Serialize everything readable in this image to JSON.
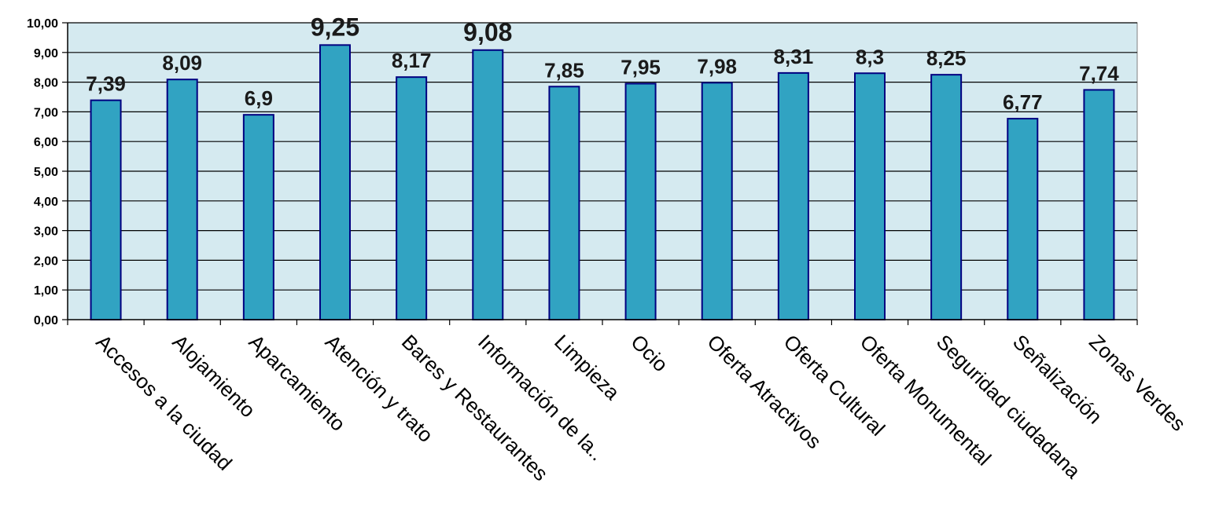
{
  "chart_data": {
    "type": "bar",
    "title": "",
    "xlabel": "",
    "ylabel": "",
    "ylim": [
      0,
      10
    ],
    "y_ticks": [
      "0,00",
      "1,00",
      "2,00",
      "3,00",
      "4,00",
      "5,00",
      "6,00",
      "7,00",
      "8,00",
      "9,00",
      "10,00"
    ],
    "grid": true,
    "legend": "none",
    "colors": {
      "plot_background": "#d5eaf0",
      "bar_fill": "#31a3c2",
      "bar_stroke": "#000080",
      "gridline": "#000000"
    },
    "categories": [
      "Accesos a la ciudad",
      "Alojamiento",
      "Aparcamiento",
      "Atención y trato",
      "Bares y Restaurantes",
      "Información de la..",
      "Limpieza",
      "Ocio",
      "Oferta Atractivos",
      "Oferta Cultural",
      "Oferta Monumental",
      "Seguridad ciudadana",
      "Señalización",
      "Zonas Verdes"
    ],
    "values": [
      7.39,
      8.09,
      6.9,
      9.25,
      8.17,
      9.08,
      7.85,
      7.95,
      7.98,
      8.31,
      8.3,
      8.25,
      6.77,
      7.74
    ],
    "data_labels": [
      "7,39",
      "8,09",
      "6,9",
      "9,25",
      "8,17",
      "9,08",
      "7,85",
      "7,95",
      "7,98",
      "8,31",
      "8,3",
      "8,25",
      "6,77",
      "7,74"
    ]
  }
}
